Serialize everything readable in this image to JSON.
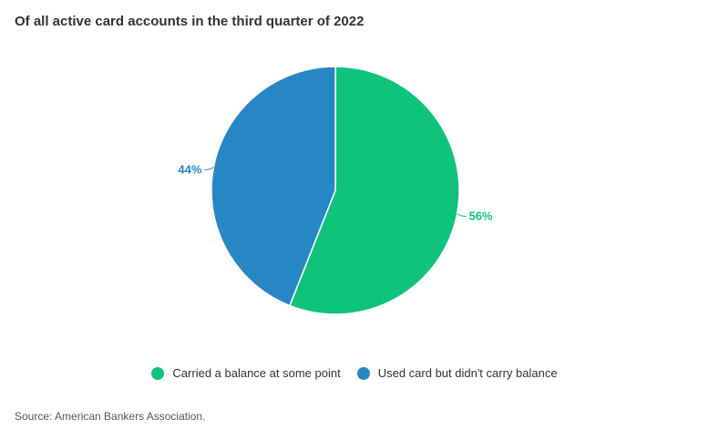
{
  "title": "Of all active card accounts in the third quarter of 2022",
  "source": "Source: American Bankers Association.",
  "chart_data": {
    "type": "pie",
    "title": "Of all active card accounts in the third quarter of 2022",
    "slices": [
      {
        "label": "Carried a balance at some point",
        "value": 56,
        "display": "56%",
        "color": "#10c37b"
      },
      {
        "label": "Used card but didn't carry balance",
        "value": 44,
        "display": "44%",
        "color": "#2787c5"
      }
    ],
    "legend_position": "bottom-center"
  }
}
